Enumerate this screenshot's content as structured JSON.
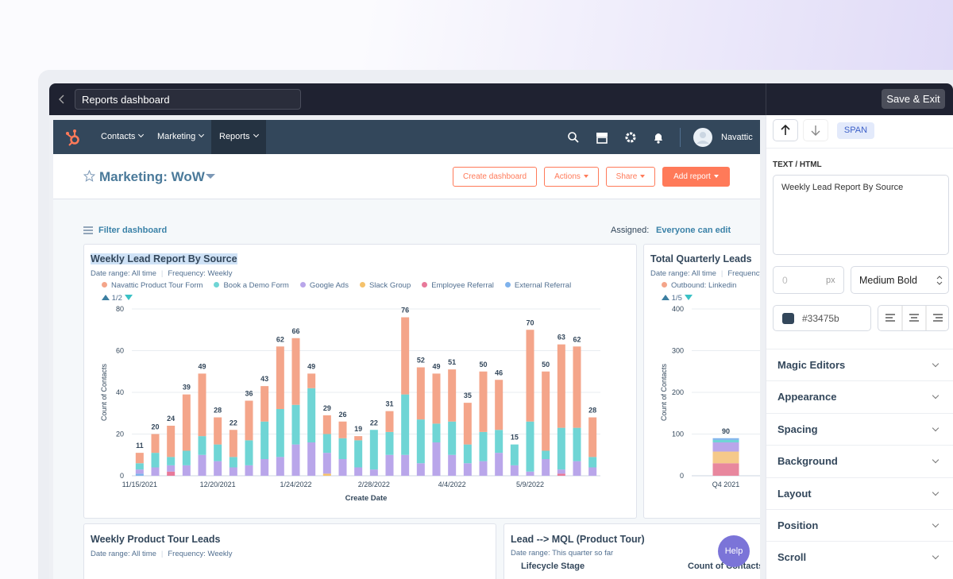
{
  "top_bar": {
    "title_input": "Reports dashboard",
    "save_button": "Save & Exit"
  },
  "nav": {
    "items": [
      "Contacts",
      "Marketing",
      "Reports"
    ],
    "user": "Navattic"
  },
  "dashboard": {
    "title": "Marketing: WoW",
    "buttons": [
      "Create dashboard",
      "Actions",
      "Share",
      "Add report"
    ],
    "filter": "Filter dashboard",
    "assigned_label": "Assigned:",
    "assigned_value": "Everyone can edit"
  },
  "chart_data": [
    {
      "type": "bar",
      "stacked": true,
      "title": "Weekly Lead Report By Source",
      "date_range": "Date range: All time",
      "frequency": "Frequency: Weekly",
      "pager": "1/2",
      "x_label": "Create Date",
      "y_label": "Count of Contacts",
      "categories": [
        "11/15/2021",
        null,
        null,
        null,
        null,
        "12/20/2021",
        null,
        null,
        null,
        null,
        "1/24/2022",
        null,
        null,
        null,
        null,
        "2/28/2022",
        null,
        null,
        null,
        null,
        "4/4/2022",
        null,
        null,
        null,
        null,
        "5/9/2022",
        null,
        null,
        null,
        null
      ],
      "series": [
        {
          "name": "Navattic Product Tour Form",
          "color": "#f4a58a",
          "values": [
            5,
            9,
            15,
            27,
            30,
            13,
            13,
            19,
            17,
            30,
            32,
            7,
            9,
            8,
            2,
            0,
            10,
            37,
            25,
            24,
            25,
            20,
            29,
            24,
            0,
            44,
            38,
            40,
            39,
            19
          ]
        },
        {
          "name": "Book a Demo Form",
          "color": "#6fd5d5",
          "values": [
            3,
            7,
            4,
            7,
            9,
            8,
            5,
            12,
            18,
            23,
            19,
            26,
            9,
            10,
            13,
            19,
            11,
            29,
            21,
            9,
            16,
            9,
            14,
            11,
            10,
            24,
            4,
            20,
            16,
            5
          ]
        },
        {
          "name": "Google Ads",
          "color": "#b9a6ea",
          "values": [
            2,
            4,
            3,
            5,
            10,
            7,
            4,
            5,
            8,
            9,
            15,
            16,
            10,
            8,
            4,
            3,
            10,
            10,
            6,
            16,
            10,
            6,
            7,
            11,
            5,
            2,
            8,
            2,
            7,
            4
          ]
        },
        {
          "name": "Slack Group",
          "color": "#f5c26b",
          "values": [
            0,
            0,
            0,
            0,
            0,
            0,
            0,
            0,
            0,
            0,
            0,
            0,
            1,
            0,
            0,
            0,
            0,
            0,
            0,
            0,
            0,
            0,
            0,
            0,
            0,
            0,
            0,
            0,
            0,
            0
          ]
        },
        {
          "name": "Employee Referral",
          "color": "#e8799a",
          "values": [
            0,
            0,
            2,
            0,
            0,
            0,
            0,
            0,
            0,
            0,
            0,
            0,
            0,
            0,
            0,
            0,
            0,
            0,
            0,
            0,
            0,
            0,
            0,
            0,
            0,
            0,
            0,
            1,
            0,
            0
          ]
        },
        {
          "name": "External Referral",
          "color": "#7eb2ec",
          "values": [
            1,
            0,
            0,
            0,
            0,
            0,
            0,
            0,
            0,
            0,
            0,
            0,
            0,
            0,
            0,
            0,
            0,
            0,
            0,
            0,
            0,
            0,
            0,
            0,
            0,
            0,
            0,
            0,
            0,
            0
          ]
        }
      ],
      "totals": [
        11,
        20,
        24,
        39,
        49,
        28,
        22,
        36,
        43,
        62,
        66,
        49,
        29,
        26,
        19,
        22,
        31,
        76,
        52,
        49,
        51,
        35,
        50,
        46,
        15,
        70,
        50,
        63,
        62,
        28
      ],
      "ylim": [
        0,
        80
      ],
      "yticks": [
        0,
        20,
        40,
        60,
        80
      ],
      "grid": true
    },
    {
      "type": "bar",
      "stacked": true,
      "title": "Total Quarterly Leads",
      "date_range": "Date range: All time",
      "frequency": "Frequency: Weekly",
      "pager": "1/5",
      "y_label": "Count of Contacts",
      "categories": [
        "Q4 2021"
      ],
      "series": [
        {
          "name": "Outbound: Linkedin",
          "color": "#f4a58a",
          "values": [
            0
          ]
        },
        {
          "color": "#7eb2ec",
          "values": [
            4
          ]
        },
        {
          "color": "#6fd5d5",
          "values": [
            6
          ]
        },
        {
          "color": "#b9a6ea",
          "values": [
            22
          ]
        },
        {
          "color": "#f5c98a",
          "values": [
            28
          ]
        },
        {
          "color": "#e8879e",
          "values": [
            30
          ]
        }
      ],
      "totals": [
        90
      ],
      "ylim": [
        0,
        400
      ],
      "yticks": [
        0,
        100,
        200,
        300,
        400
      ],
      "grid": true
    }
  ],
  "cards": [
    {
      "title": "Weekly Product Tour Leads",
      "date_range": "Date range: All time",
      "frequency": "Frequency: Weekly"
    },
    {
      "title": "Lead --> MQL (Product Tour)",
      "date_range": "Date range: This quarter so far",
      "columns": [
        "Lifecycle Stage",
        "Count of Contacts"
      ]
    }
  ],
  "help": "Help",
  "editor": {
    "tag": "SPAN",
    "text_label": "TEXT / HTML",
    "text_value": "Weekly Lead Report By Source",
    "size_value": "0",
    "size_unit": "px",
    "weight": "Medium Bold",
    "color": "#33475b",
    "sections": [
      "Magic Editors",
      "Appearance",
      "Spacing",
      "Background",
      "Layout",
      "Position",
      "Scroll"
    ]
  }
}
